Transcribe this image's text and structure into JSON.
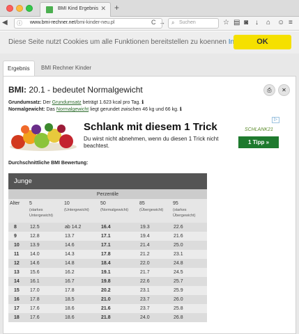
{
  "browser": {
    "tab_title": "BMI Kind Ergebnis",
    "url_domain": "www.bmi-rechner.net",
    "url_path": "/bmi-kinder-neu.pl",
    "search_placeholder": "Suchen"
  },
  "cookie_bar": {
    "text": "Diese Seite nutzt Cookies um alle Funktionen bereitstellen zu koennen",
    "info_link": "Info",
    "ok_label": "OK"
  },
  "page_tabs": [
    "Ergebnis",
    "BMI Rechner Kinder"
  ],
  "result": {
    "bmi_label": "BMI:",
    "bmi_value": "20.1 - bedeutet Normalgewicht",
    "grundumsatz_label": "Grundumsatz:",
    "grundumsatz_pre": "Der",
    "grundumsatz_link": "Grundumsatz",
    "grundumsatz_post": "beträgt 1.623 kcal pro Tag.",
    "normalgewicht_label": "Normalgewicht:",
    "normalgewicht_pre": "Das",
    "normalgewicht_link": "Normalgewicht",
    "normalgewicht_post": "liegt gerundet zwischen 46 kg und 66 kg."
  },
  "ad": {
    "headline": "Schlank mit diesem 1 Trick",
    "text": "Du wirst nicht abnehmen, wenn du diesen 1 Trick nicht beachtest.",
    "logo": "SCHLANK21",
    "cta": "1 Tipp »"
  },
  "table": {
    "section_title": "Durchschnittliche BMI Bewertung:",
    "group": "Junge",
    "perzentile_label": "Perzentile",
    "columns": [
      {
        "label": "Alter",
        "sub": ""
      },
      {
        "label": "5",
        "sub": "(starkes Untergewicht)"
      },
      {
        "label": "10",
        "sub": "(Untergewicht)"
      },
      {
        "label": "50",
        "sub": "(Normalgewicht)"
      },
      {
        "label": "85",
        "sub": "(Übergewicht)"
      },
      {
        "label": "95",
        "sub": "(starkes Übergewicht)"
      }
    ],
    "rows": [
      [
        "8",
        "12.5",
        "ab 14.2",
        "16.4",
        "19.3",
        "22.6"
      ],
      [
        "9",
        "12.8",
        "13.7",
        "17.1",
        "19.4",
        "21.6"
      ],
      [
        "10",
        "13.9",
        "14.6",
        "17.1",
        "21.4",
        "25.0"
      ],
      [
        "11",
        "14.0",
        "14.3",
        "17.8",
        "21.2",
        "23.1"
      ],
      [
        "12",
        "14.6",
        "14.8",
        "18.4",
        "22.0",
        "24.8"
      ],
      [
        "13",
        "15.6",
        "16.2",
        "19.1",
        "21.7",
        "24.5"
      ],
      [
        "14",
        "16.1",
        "16.7",
        "19.8",
        "22.6",
        "25.7"
      ],
      [
        "15",
        "17.0",
        "17.8",
        "20.2",
        "23.1",
        "25.9"
      ],
      [
        "16",
        "17.8",
        "18.5",
        "21.0",
        "23.7",
        "26.0"
      ],
      [
        "17",
        "17.6",
        "18.6",
        "21.6",
        "23.7",
        "25.8"
      ],
      [
        "18",
        "17.6",
        "18.6",
        "21.8",
        "24.0",
        "26.8"
      ]
    ]
  }
}
